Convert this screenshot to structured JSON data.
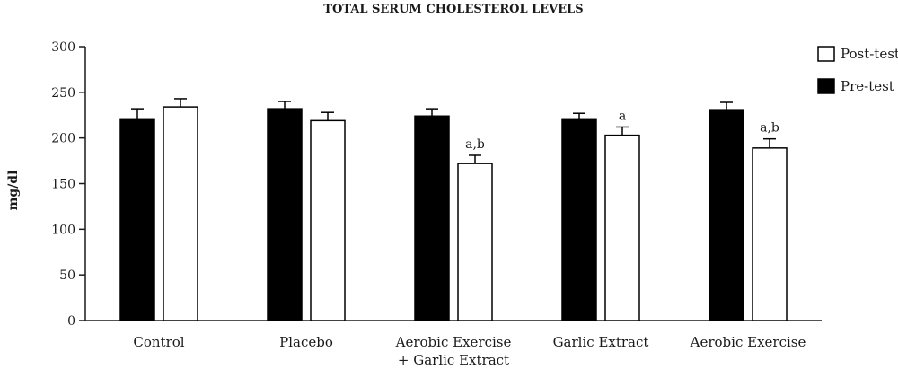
{
  "chart_data": {
    "type": "bar",
    "title": "TOTAL SERUM CHOLESTEROL LEVELS",
    "ylabel": "mg/dl",
    "xlabel": "",
    "ylim": [
      0,
      300
    ],
    "yticks": [
      0,
      50,
      100,
      150,
      200,
      250,
      300
    ],
    "categories": [
      [
        "Control"
      ],
      [
        "Placebo"
      ],
      [
        "Aerobic Exercise",
        "+ Garlic Extract"
      ],
      [
        "Garlic Extract"
      ],
      [
        "Aerobic Exercise"
      ]
    ],
    "series": [
      {
        "name": "Pre-test",
        "color": "#000000",
        "values": [
          221,
          232,
          224,
          221,
          231
        ],
        "errors": [
          11,
          8,
          8,
          6,
          8
        ],
        "annotations": [
          "",
          "",
          "",
          "",
          ""
        ]
      },
      {
        "name": "Post-test",
        "color": "#ffffff",
        "values": [
          234,
          219,
          172,
          203,
          189
        ],
        "errors": [
          9,
          9,
          9,
          9,
          10
        ],
        "annotations": [
          "",
          "",
          "a,b",
          "a",
          "a,b"
        ]
      }
    ],
    "legend": {
      "position": "top-right",
      "order": [
        "Post-test",
        "Pre-test"
      ]
    },
    "grid": false
  }
}
